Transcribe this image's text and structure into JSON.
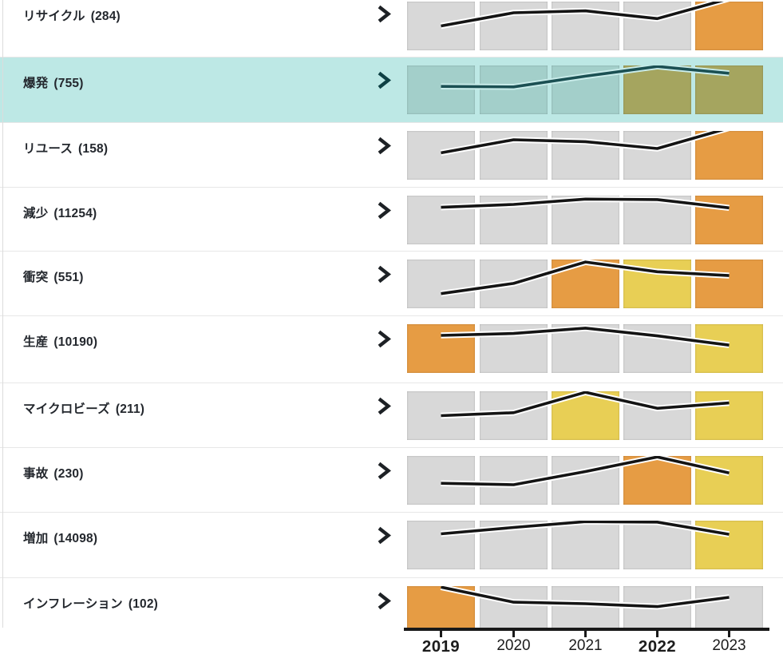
{
  "rows": [
    {
      "label": "リサイクル",
      "count": "(284)",
      "selected": false,
      "cells": [
        "gray",
        "gray",
        "gray",
        "gray",
        "orange"
      ],
      "trend": [
        0.5,
        0.23,
        0.19,
        0.35,
        -0.06
      ]
    },
    {
      "label": "爆発",
      "count": "(755)",
      "selected": true,
      "cells": [
        "gray",
        "gray",
        "gray",
        "yellow",
        "yellow"
      ],
      "trend": [
        0.43,
        0.44,
        0.22,
        0.02,
        0.16
      ]
    },
    {
      "label": "リユース",
      "count": "(158)",
      "selected": false,
      "cells": [
        "gray",
        "gray",
        "gray",
        "gray",
        "orange"
      ],
      "trend": [
        0.45,
        0.18,
        0.22,
        0.36,
        -0.06
      ]
    },
    {
      "label": "減少",
      "count": "(11254)",
      "selected": false,
      "cells": [
        "gray",
        "gray",
        "gray",
        "gray",
        "orange"
      ],
      "trend": [
        0.24,
        0.18,
        0.07,
        0.08,
        0.25
      ]
    },
    {
      "label": "衝突",
      "count": "(551)",
      "selected": false,
      "cells": [
        "gray",
        "gray",
        "orange",
        "yellow",
        "orange"
      ],
      "trend": [
        0.7,
        0.49,
        0.05,
        0.25,
        0.33
      ]
    },
    {
      "label": "生産",
      "count": "(10190)",
      "selected": false,
      "cells": [
        "orange",
        "gray",
        "gray",
        "gray",
        "yellow"
      ],
      "trend": [
        0.23,
        0.19,
        0.08,
        0.24,
        0.43
      ]
    },
    {
      "label": "マイクロビーズ",
      "count": "(211)",
      "selected": false,
      "cells": [
        "gray",
        "gray",
        "yellow",
        "gray",
        "yellow"
      ],
      "trend": [
        0.5,
        0.44,
        0.02,
        0.35,
        0.24
      ]
    },
    {
      "label": "事故",
      "count": "(230)",
      "selected": false,
      "cells": [
        "gray",
        "gray",
        "gray",
        "orange",
        "yellow"
      ],
      "trend": [
        0.56,
        0.59,
        0.32,
        0.02,
        0.35
      ]
    },
    {
      "label": "増加",
      "count": "(14098)",
      "selected": false,
      "cells": [
        "gray",
        "gray",
        "gray",
        "gray",
        "yellow"
      ],
      "trend": [
        0.27,
        0.14,
        0.02,
        0.03,
        0.28
      ]
    },
    {
      "label": "インフレーション",
      "count": "(102)",
      "selected": false,
      "cells": [
        "orange",
        "gray",
        "gray",
        "gray",
        "gray"
      ],
      "trend": [
        0.02,
        0.33,
        0.36,
        0.42,
        0.23
      ]
    }
  ],
  "axis": {
    "years": [
      {
        "label": "2019",
        "bold": true
      },
      {
        "label": "2020",
        "bold": false
      },
      {
        "label": "2021",
        "bold": false
      },
      {
        "label": "2022",
        "bold": true
      },
      {
        "label": "2023",
        "bold": false
      }
    ]
  },
  "colors": {
    "cells": {
      "gray": "#d8d8d8",
      "orange": "#e69c44",
      "yellow": "#e8cf55"
    },
    "selected_cells": {
      "gray": "#a3cfca",
      "orange": "#ab8352",
      "yellow": "#a5a55f"
    },
    "selected_row_bg": "#bde8e5",
    "line": "#141414",
    "line_halo": "#ffffff",
    "selected_line": "#1b5053",
    "selected_line_halo": "#c9ecea",
    "chevron": "#1d2125",
    "selected_chevron": "#0e4044",
    "axis_line": "#191919",
    "text": "#23272d",
    "separator": "#e7e7e7"
  },
  "chart_data": {
    "type": "line",
    "note": "Small-multiple sparklines drawn over 5 heatmap cells per keyword; y-axis is unlabeled, values given as relative height 0-1 (1 = top of cell). cell_colors encode activity level per year.",
    "categories": [
      "2019",
      "2020",
      "2021",
      "2022",
      "2023"
    ],
    "xlabel": "",
    "ylabel": "",
    "legend": "none",
    "series": [
      {
        "name": "リサイクル (284)",
        "values": [
          0.5,
          0.77,
          0.81,
          0.65,
          1.05
        ],
        "cell_colors": [
          "gray",
          "gray",
          "gray",
          "gray",
          "orange"
        ]
      },
      {
        "name": "爆発 (755)",
        "values": [
          0.57,
          0.56,
          0.78,
          0.98,
          0.84
        ],
        "cell_colors": [
          "gray",
          "gray",
          "gray",
          "yellow",
          "yellow"
        ],
        "selected": true
      },
      {
        "name": "リユース (158)",
        "values": [
          0.55,
          0.82,
          0.78,
          0.64,
          1.05
        ],
        "cell_colors": [
          "gray",
          "gray",
          "gray",
          "gray",
          "orange"
        ]
      },
      {
        "name": "減少 (11254)",
        "values": [
          0.76,
          0.82,
          0.93,
          0.92,
          0.75
        ],
        "cell_colors": [
          "gray",
          "gray",
          "gray",
          "gray",
          "orange"
        ]
      },
      {
        "name": "衝突 (551)",
        "values": [
          0.3,
          0.51,
          0.95,
          0.75,
          0.67
        ],
        "cell_colors": [
          "gray",
          "gray",
          "orange",
          "yellow",
          "orange"
        ]
      },
      {
        "name": "生産 (10190)",
        "values": [
          0.77,
          0.81,
          0.92,
          0.76,
          0.57
        ],
        "cell_colors": [
          "orange",
          "gray",
          "gray",
          "gray",
          "yellow"
        ]
      },
      {
        "name": "マイクロビーズ (211)",
        "values": [
          0.5,
          0.56,
          0.98,
          0.65,
          0.76
        ],
        "cell_colors": [
          "gray",
          "gray",
          "yellow",
          "gray",
          "yellow"
        ]
      },
      {
        "name": "事故 (230)",
        "values": [
          0.44,
          0.41,
          0.68,
          0.98,
          0.65
        ],
        "cell_colors": [
          "gray",
          "gray",
          "gray",
          "orange",
          "yellow"
        ]
      },
      {
        "name": "増加 (14098)",
        "values": [
          0.73,
          0.86,
          0.98,
          0.97,
          0.72
        ],
        "cell_colors": [
          "gray",
          "gray",
          "gray",
          "gray",
          "yellow"
        ]
      },
      {
        "name": "インフレーション (102)",
        "values": [
          0.98,
          0.67,
          0.64,
          0.58,
          0.77
        ],
        "cell_colors": [
          "orange",
          "gray",
          "gray",
          "gray",
          "gray"
        ]
      }
    ]
  }
}
